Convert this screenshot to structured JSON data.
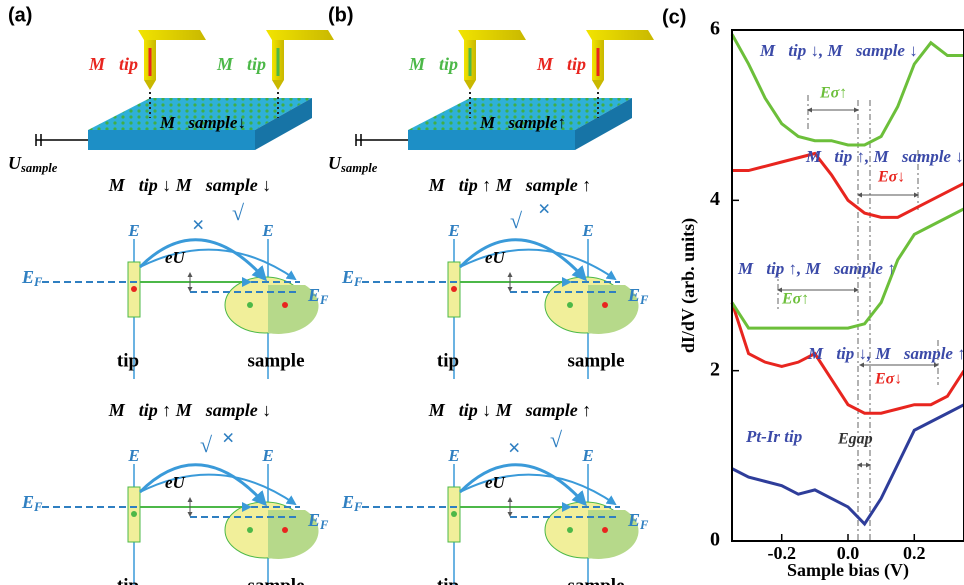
{
  "panels": [
    {
      "label": "(a)",
      "tip_left": "M⃗tip",
      "tip_left_color": "#e8251f",
      "tip_right": "M⃗tip",
      "tip_right_color": "#4cb848",
      "sample": "M⃗sample↓",
      "voltage": {
        "symbol": "U",
        "sub": "sample"
      },
      "diagrams": [
        {
          "heading": "M⃗tip ↓  M⃗sample ↓",
          "e": "E",
          "eu": "eU",
          "ef": {
            "symbol": "E",
            "sub": "F"
          },
          "check": "√",
          "cross": "×",
          "tip": "tip",
          "sample": "sample"
        },
        {
          "heading": "M⃗tip ↑  M⃗sample ↓",
          "e": "E",
          "eu": "eU",
          "ef": {
            "symbol": "E",
            "sub": "F"
          },
          "check": "√",
          "cross": "×",
          "tip": "tip",
          "sample": "sample"
        }
      ]
    },
    {
      "label": "(b)",
      "tip_left": "M⃗tip",
      "tip_left_color": "#4cb848",
      "tip_right": "M⃗tip",
      "tip_right_color": "#e8251f",
      "sample": "M⃗sample↑",
      "voltage": {
        "symbol": "U",
        "sub": "sample"
      },
      "diagrams": [
        {
          "heading": "M⃗tip ↑  M⃗sample ↑",
          "e": "E",
          "eu": "eU",
          "ef": {
            "symbol": "E",
            "sub": "F"
          },
          "check": "√",
          "cross": "×",
          "tip": "tip",
          "sample": "sample"
        },
        {
          "heading": "M⃗tip ↓  M⃗sample ↑",
          "e": "E",
          "eu": "eU",
          "ef": {
            "symbol": "E",
            "sub": "F"
          },
          "check": "√",
          "cross": "×",
          "tip": "tip",
          "sample": "sample"
        }
      ]
    }
  ],
  "chart_data": {
    "type": "line",
    "panel_label": "(c)",
    "x_label": "Sample bias (V)",
    "y_label": "dI/dV (arb. units)",
    "xlim": [
      -0.35,
      0.35
    ],
    "ylim": [
      0,
      6
    ],
    "xticks": [
      {
        "value": -0.2,
        "label": "-0.2"
      },
      {
        "value": 0,
        "label": "0.0"
      },
      {
        "value": 0.2,
        "label": "0.2"
      }
    ],
    "yticks": [
      0,
      2,
      4,
      6
    ],
    "x": [
      -0.35,
      -0.3,
      -0.25,
      -0.2,
      -0.15,
      -0.1,
      -0.05,
      0,
      0.05,
      0.1,
      0.15,
      0.2,
      0.25,
      0.3,
      0.35
    ],
    "series": [
      {
        "color": "#2e3d9a",
        "values": [
          0.85,
          0.75,
          0.7,
          0.65,
          0.55,
          0.6,
          0.5,
          0.4,
          0.2,
          0.5,
          0.9,
          1.3,
          1.4,
          1.5,
          1.6
        ]
      },
      {
        "color": "#e8251f",
        "values": [
          2.8,
          2.2,
          2.1,
          2.05,
          2.1,
          2.2,
          1.9,
          1.6,
          1.5,
          1.5,
          1.55,
          1.6,
          1.6,
          1.7,
          2.0
        ]
      },
      {
        "color": "#6cbf3a",
        "values": [
          2.8,
          2.5,
          2.5,
          2.5,
          2.5,
          2.5,
          2.5,
          2.5,
          2.55,
          2.8,
          3.3,
          3.6,
          3.7,
          3.8,
          3.9
        ]
      },
      {
        "color": "#e8251f",
        "values": [
          4.35,
          4.35,
          4.4,
          4.45,
          4.5,
          4.55,
          4.3,
          4.0,
          3.85,
          3.8,
          3.8,
          3.9,
          4.0,
          4.1,
          4.2
        ]
      },
      {
        "color": "#6cbf3a",
        "values": [
          5.95,
          5.6,
          5.2,
          4.9,
          4.75,
          4.7,
          4.7,
          4.65,
          4.65,
          4.75,
          5.1,
          5.6,
          5.85,
          5.7,
          5.7
        ]
      }
    ],
    "annotations": [
      {
        "text": "M⃗tip ↓, M⃗sample ↓",
        "color": "#3b4aa8"
      },
      {
        "text": "Eσ↑",
        "color": "#6cbf3a"
      },
      {
        "text": "M⃗tip ↑, M⃗sample ↓",
        "color": "#3b4aa8"
      },
      {
        "text": "Eσ↓",
        "color": "#e8251f"
      },
      {
        "text": "M⃗tip ↑, M⃗sample ↑",
        "color": "#3b4aa8"
      },
      {
        "text": "Eσ↑",
        "color": "#6cbf3a"
      },
      {
        "text": "M⃗tip ↓, M⃗sample ↑",
        "color": "#3b4aa8"
      },
      {
        "text": "Eσ↓",
        "color": "#e8251f"
      },
      {
        "text": "Pt-Ir tip",
        "color": "#3b4aa8"
      },
      {
        "text": "Egap",
        "color": "#333333"
      }
    ]
  }
}
